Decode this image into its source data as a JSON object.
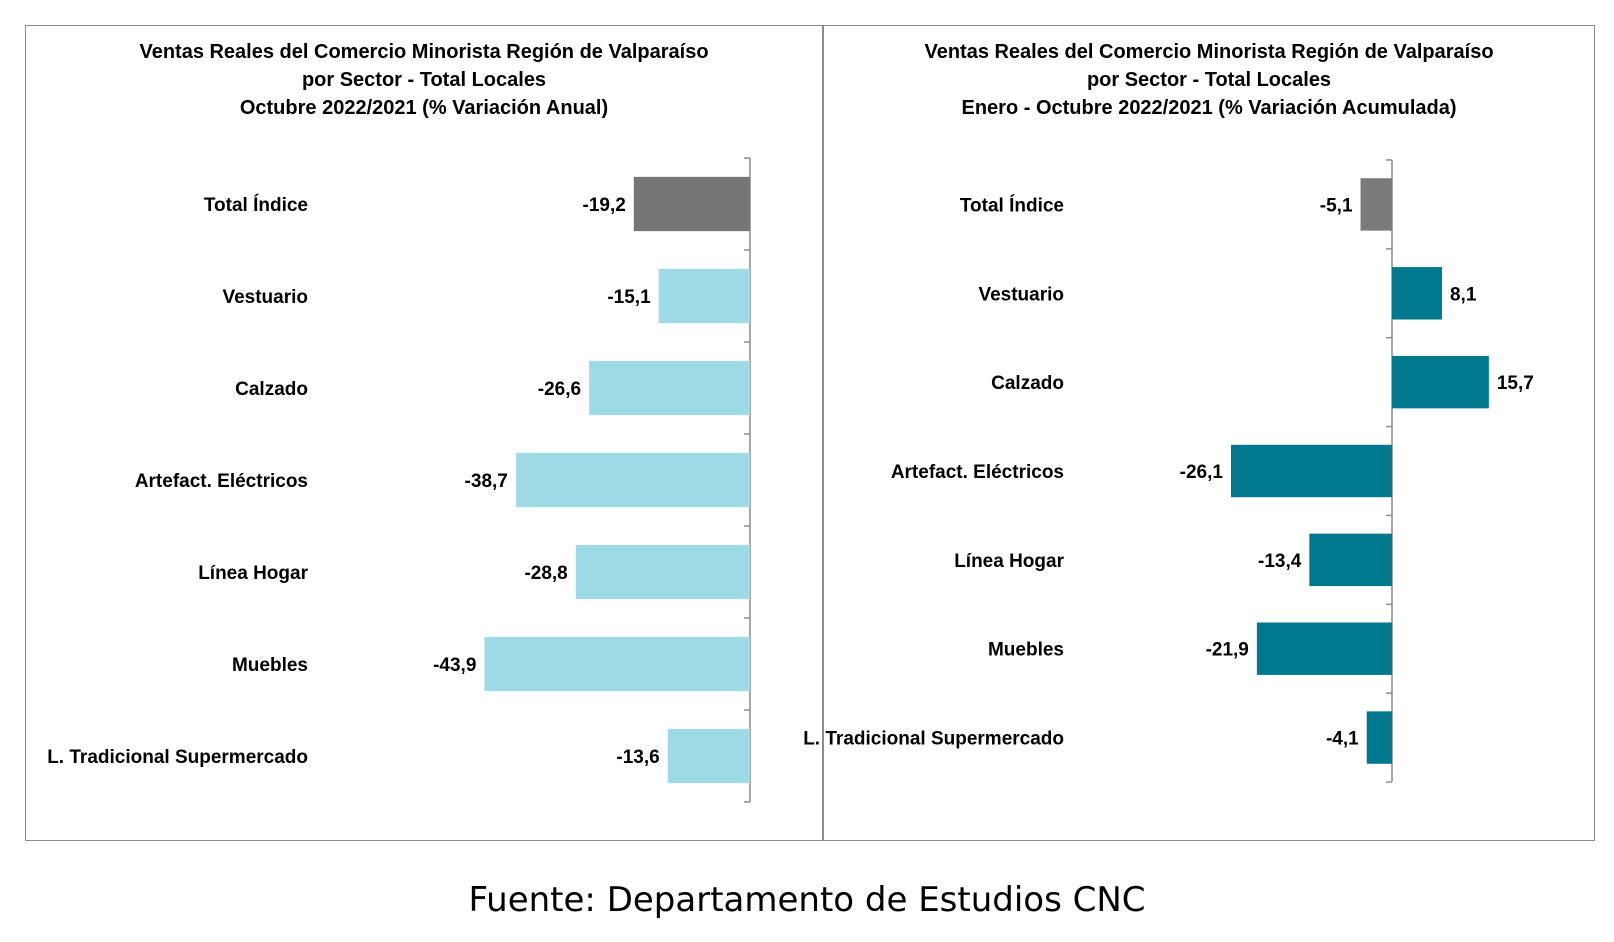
{
  "source": "Fuente: Departamento de Estudios CNC",
  "chart_data": [
    {
      "type": "bar",
      "orientation": "horizontal",
      "title": [
        "Ventas Reales del Comercio Minorista Región de Valparaíso",
        "por Sector - Total Locales",
        "Octubre 2022/2021 (% Variación Anual)"
      ],
      "categories": [
        "Total Índice",
        "Vestuario",
        "Calzado",
        "Artefact. Eléctricos",
        "Línea Hogar",
        "Muebles",
        "L. Tradicional Supermercado"
      ],
      "values": [
        -19.2,
        -15.1,
        -26.6,
        -38.7,
        -28.8,
        -43.9,
        -13.6
      ],
      "value_labels": [
        "-19,2",
        "-15,1",
        "-26,6",
        "-38,7",
        "-28,8",
        "-43,9",
        "-13,6"
      ],
      "colors": [
        "#767676",
        "#9fdbe6",
        "#9fdbe6",
        "#9fdbe6",
        "#9fdbe6",
        "#9fdbe6",
        "#9fdbe6"
      ],
      "xlim": [
        -47,
        0
      ]
    },
    {
      "type": "bar",
      "orientation": "horizontal",
      "title": [
        "Ventas Reales del Comercio Minorista Región de Valparaíso",
        "por Sector  - Total Locales",
        "Enero - Octubre 2022/2021 (% Variación Acumulada)"
      ],
      "categories": [
        "Total Índice",
        "Vestuario",
        "Calzado",
        "Artefact. Eléctricos",
        "Línea Hogar",
        "Muebles",
        "L. Tradicional Supermercado"
      ],
      "values": [
        -5.1,
        8.1,
        15.7,
        -26.1,
        -13.4,
        -21.9,
        -4.1
      ],
      "value_labels": [
        "-5,1",
        "8,1",
        "15,7",
        "-26,1",
        "-13,4",
        "-21,9",
        "-4,1"
      ],
      "colors": [
        "#7a7a7a",
        "#00798f",
        "#00798f",
        "#00798f",
        "#00798f",
        "#00798f",
        "#00798f"
      ],
      "xlim": [
        -33,
        20
      ]
    }
  ]
}
